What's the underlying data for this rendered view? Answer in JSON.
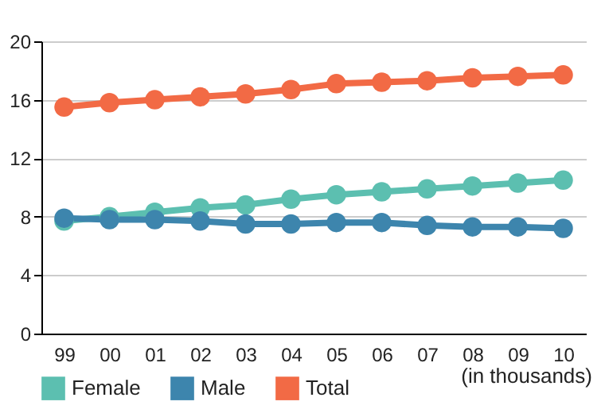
{
  "chart_data": {
    "type": "line",
    "categories": [
      "99",
      "00",
      "01",
      "02",
      "03",
      "04",
      "05",
      "06",
      "07",
      "08",
      "09",
      "10"
    ],
    "series": [
      {
        "name": "Female",
        "color": "#5cbfb0",
        "values": [
          7.7,
          8.0,
          8.3,
          8.6,
          8.8,
          9.2,
          9.5,
          9.7,
          9.9,
          10.1,
          10.3,
          10.5
        ]
      },
      {
        "name": "Male",
        "color": "#3d85ad",
        "values": [
          7.9,
          7.8,
          7.8,
          7.7,
          7.5,
          7.5,
          7.6,
          7.6,
          7.4,
          7.3,
          7.3,
          7.2
        ]
      },
      {
        "name": "Total",
        "color": "#f26a45",
        "values": [
          15.5,
          15.8,
          16.0,
          16.2,
          16.4,
          16.7,
          17.1,
          17.2,
          17.3,
          17.5,
          17.6,
          17.7
        ]
      }
    ],
    "ylim": [
      0,
      20
    ],
    "yticks": [
      0,
      4,
      8,
      12,
      16,
      20
    ],
    "grid": "y",
    "legend": "bottom",
    "marker": "circle",
    "annotations": [
      "(in thousands)"
    ]
  }
}
